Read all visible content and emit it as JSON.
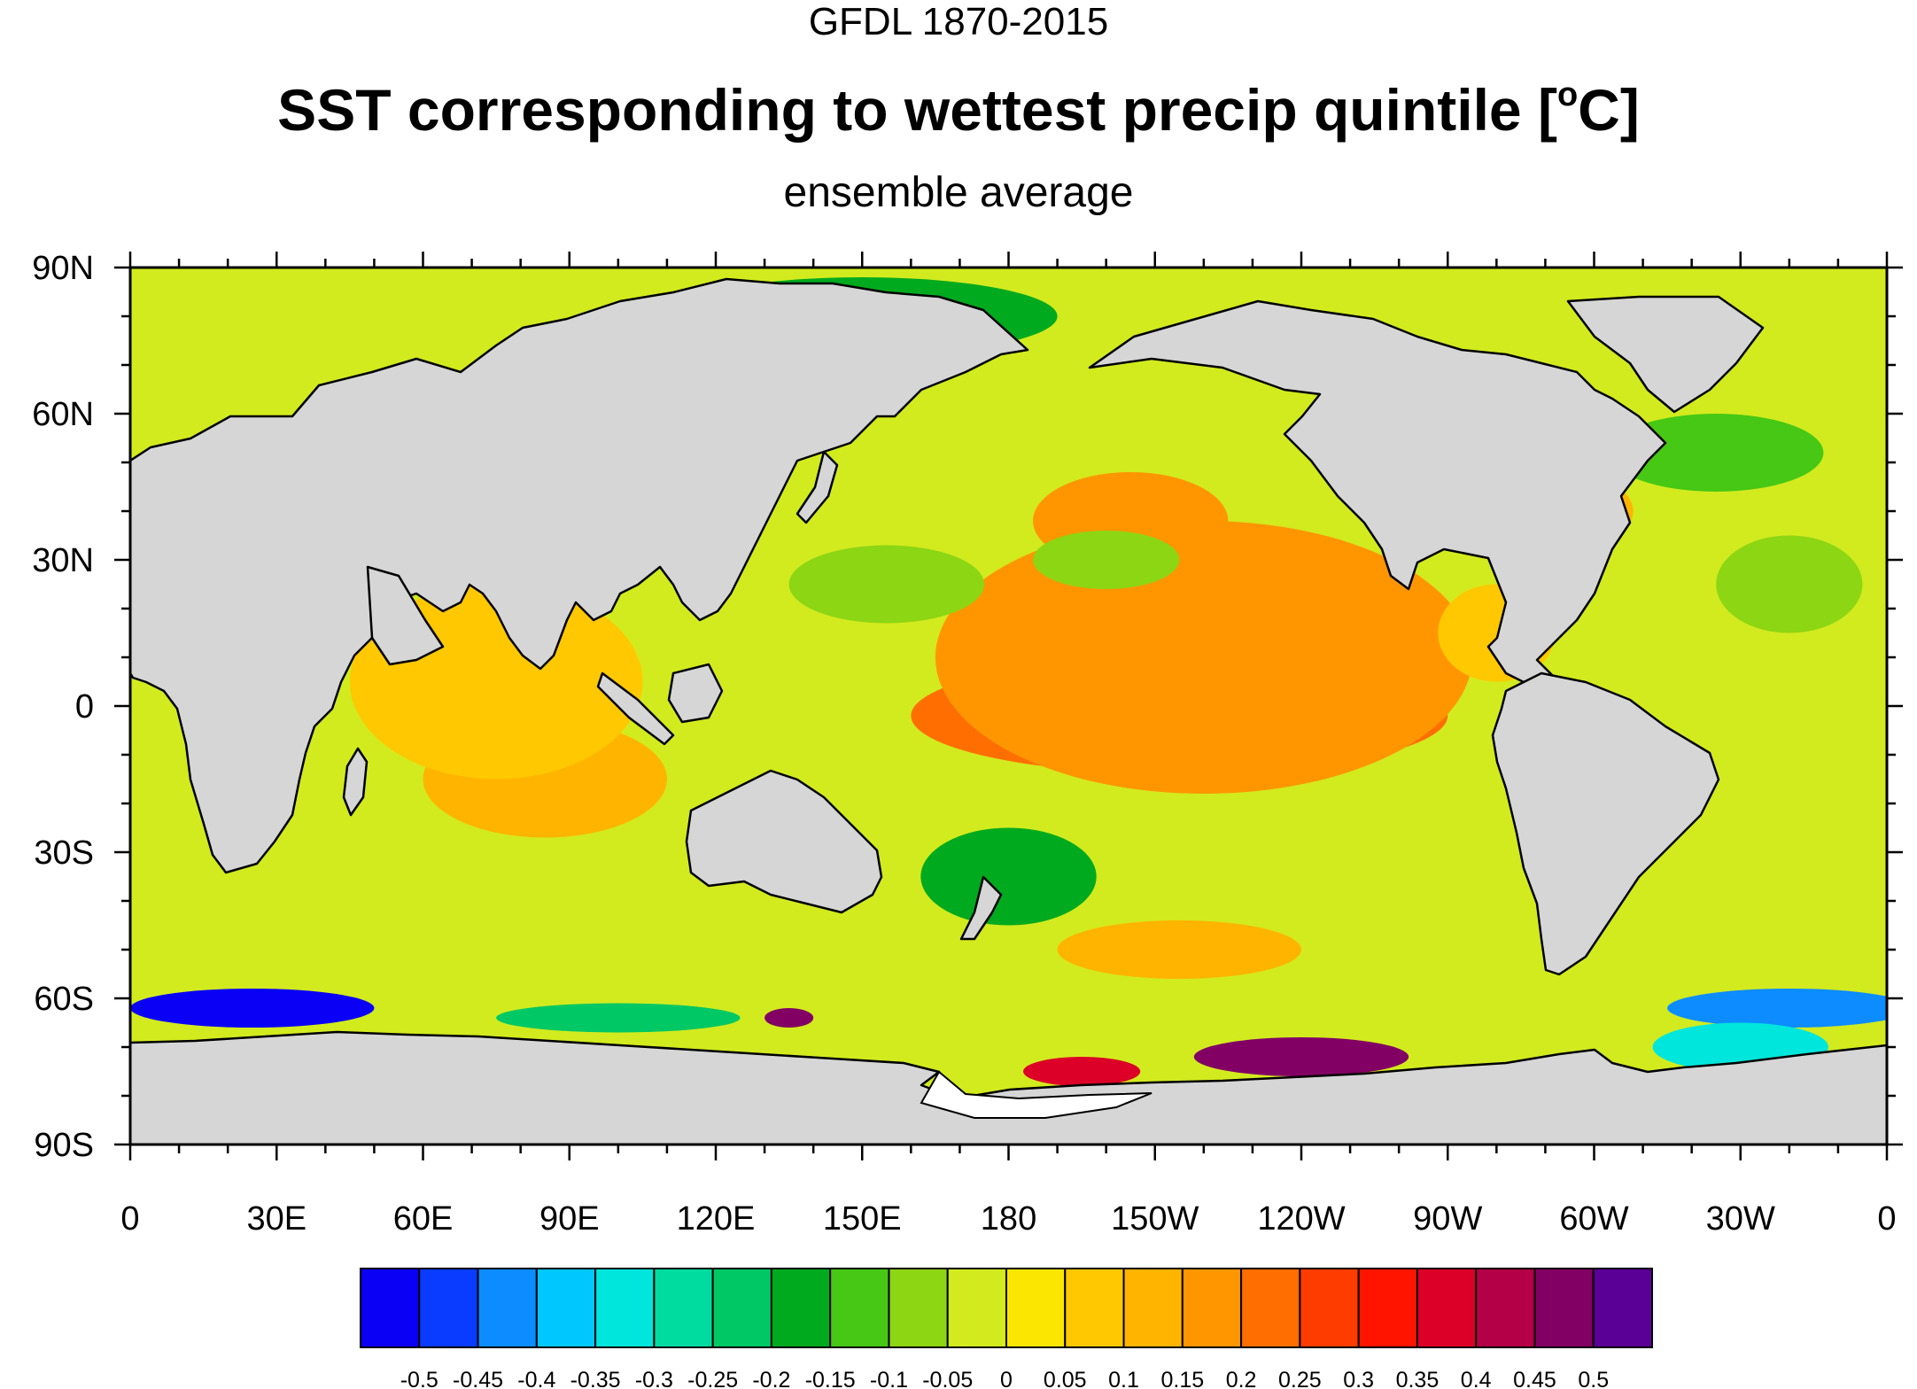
{
  "titles": {
    "top": "GFDL 1870-2015",
    "main_text": "SST corresponding to wettest precip quintile [",
    "main_sup": "o",
    "main_unit_tail": "C]",
    "sub": "ensemble average"
  },
  "axes": {
    "lat_ticks": [
      "90N",
      "60N",
      "30N",
      "0",
      "30S",
      "60S",
      "90S"
    ],
    "lon_ticks": [
      "0",
      "30E",
      "60E",
      "90E",
      "120E",
      "150E",
      "180",
      "150W",
      "120W",
      "90W",
      "60W",
      "30W",
      "0"
    ]
  },
  "colorbar": {
    "colors": [
      "#0a00f5",
      "#0a3cff",
      "#0c8cff",
      "#00c8ff",
      "#00e6dc",
      "#00dca0",
      "#00c864",
      "#00aa1e",
      "#46c814",
      "#8cd614",
      "#d2eb1e",
      "#fae600",
      "#ffc800",
      "#ffb400",
      "#ff9600",
      "#ff6e00",
      "#ff3c00",
      "#ff1400",
      "#dc0028",
      "#b40046",
      "#820064",
      "#5a0096"
    ],
    "labels": [
      "-0.5",
      "-0.45",
      "-0.4",
      "-0.35",
      "-0.3",
      "-0.25",
      "-0.2",
      "-0.15",
      "-0.1",
      "-0.05",
      "0",
      "0.05",
      "0.1",
      "0.15",
      "0.2",
      "0.25",
      "0.3",
      "0.35",
      "0.4",
      "0.45",
      "0.5"
    ]
  },
  "colors": {
    "land": "#d6d6d6",
    "missing": "#ffffff",
    "coast": "#000000"
  },
  "chart_data": {
    "type": "heatmap",
    "title": "SST corresponding to wettest precip quintile [oC]",
    "subtitle": "ensemble average",
    "projection": "cylindrical-equidistant",
    "lon_range": [
      0,
      360
    ],
    "lat_range": [
      -90,
      90
    ],
    "levels": [
      -0.5,
      -0.45,
      -0.4,
      -0.35,
      -0.3,
      -0.25,
      -0.2,
      -0.15,
      -0.1,
      -0.05,
      0,
      0.05,
      0.1,
      0.15,
      0.2,
      0.25,
      0.3,
      0.35,
      0.4,
      0.45,
      0.5
    ],
    "background_value": -0.03,
    "anomalies": [
      {
        "lon": 215,
        "lat": 0,
        "value": 0.28,
        "rlon": 38,
        "rlat": 7
      },
      {
        "lon": 215,
        "lat": -2,
        "value": 0.2,
        "rlon": 55,
        "rlat": 12
      },
      {
        "lon": 220,
        "lat": 10,
        "value": 0.16,
        "rlon": 55,
        "rlat": 28
      },
      {
        "lon": 205,
        "lat": 38,
        "value": 0.16,
        "rlon": 20,
        "rlat": 10
      },
      {
        "lon": 200,
        "lat": 30,
        "value": -0.1,
        "rlon": 15,
        "rlat": 6
      },
      {
        "lon": 155,
        "lat": 25,
        "value": -0.1,
        "rlon": 20,
        "rlat": 8
      },
      {
        "lon": 180,
        "lat": -35,
        "value": -0.16,
        "rlon": 18,
        "rlat": 10
      },
      {
        "lon": 85,
        "lat": -15,
        "value": 0.12,
        "rlon": 25,
        "rlat": 12
      },
      {
        "lon": 75,
        "lat": 5,
        "value": 0.06,
        "rlon": 30,
        "rlat": 20
      },
      {
        "lon": 150,
        "lat": 80,
        "value": -0.2,
        "rlon": 40,
        "rlat": 8
      },
      {
        "lon": 325,
        "lat": 52,
        "value": -0.14,
        "rlon": 22,
        "rlat": 8
      },
      {
        "lon": 340,
        "lat": 25,
        "value": -0.1,
        "rlon": 15,
        "rlat": 10
      },
      {
        "lon": 300,
        "lat": 40,
        "value": 0.14,
        "rlon": 8,
        "rlat": 6
      },
      {
        "lon": 215,
        "lat": -50,
        "value": 0.1,
        "rlon": 25,
        "rlat": 6
      },
      {
        "lon": 280,
        "lat": 15,
        "value": 0.08,
        "rlon": 12,
        "rlat": 10
      },
      {
        "lon": 240,
        "lat": -72,
        "value": 0.46,
        "rlon": 22,
        "rlat": 4
      },
      {
        "lon": 195,
        "lat": -75,
        "value": 0.38,
        "rlon": 12,
        "rlat": 3
      },
      {
        "lon": 135,
        "lat": -64,
        "value": 0.45,
        "rlon": 5,
        "rlat": 2
      },
      {
        "lon": 25,
        "lat": -62,
        "value": -0.52,
        "rlon": 25,
        "rlat": 4
      },
      {
        "lon": 340,
        "lat": -62,
        "value": -0.45,
        "rlon": 25,
        "rlat": 4
      },
      {
        "lon": 330,
        "lat": -70,
        "value": -0.33,
        "rlon": 18,
        "rlat": 5
      },
      {
        "lon": 100,
        "lat": -64,
        "value": -0.25,
        "rlon": 25,
        "rlat": 3
      }
    ]
  }
}
